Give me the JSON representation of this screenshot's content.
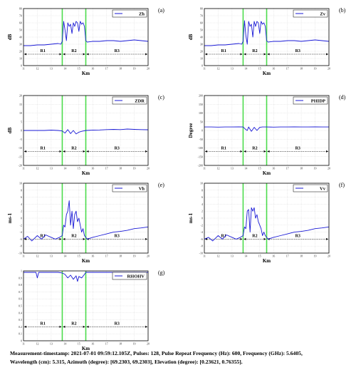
{
  "caption": {
    "line1": "Measurement-timestamp: 2021-07-01 09:59:12.105Z, Pulses: 128, Pulse Repeat Frequency (Hz): 600, Frequency (GHz): 5.6405,",
    "line2": "Wavelength (cm): 5.315, Azimuth (degree): [69.2303, 69.2303], Elevation (degree): [0.23621, 0.76355]."
  },
  "colors": {
    "line": "#1a1ad6",
    "boundary": "#4cdc4c",
    "axis": "#000000",
    "grid": "#cfcfcf"
  },
  "chart_data": [
    {
      "panel": "(a)",
      "type": "line",
      "legend": "Zh",
      "ylabel": "dB",
      "xlabel": "Km",
      "xlim": [
        11,
        20
      ],
      "ylim": [
        0,
        80
      ],
      "yticks": [
        "0",
        "10",
        "20",
        "30",
        "40",
        "50",
        "60",
        "70",
        "80"
      ],
      "xticks": [
        "11",
        "12",
        "13",
        "14",
        "15",
        "16",
        "17",
        "18",
        "19",
        "20"
      ],
      "boundaries": [
        13.8,
        15.5
      ],
      "regions": [
        "R1",
        "R2",
        "R3"
      ],
      "x": [
        11,
        11.5,
        12,
        12.5,
        13,
        13.5,
        13.7,
        13.8,
        13.9,
        14.0,
        14.1,
        14.2,
        14.3,
        14.4,
        14.5,
        14.6,
        14.7,
        14.8,
        14.9,
        15.0,
        15.1,
        15.2,
        15.3,
        15.4,
        15.5,
        15.6,
        16,
        16.5,
        17,
        17.5,
        18,
        18.5,
        19,
        19.5,
        20
      ],
      "y": [
        28,
        28,
        29,
        29,
        30,
        31,
        30,
        34,
        62,
        50,
        35,
        60,
        55,
        58,
        45,
        60,
        55,
        62,
        60,
        48,
        62,
        58,
        60,
        55,
        35,
        33,
        34,
        34,
        35,
        35,
        34,
        35,
        36,
        35,
        34
      ]
    },
    {
      "panel": "(b)",
      "type": "line",
      "legend": "Zv",
      "ylabel": "dB",
      "xlabel": "Km",
      "xlim": [
        11,
        20
      ],
      "ylim": [
        0,
        80
      ],
      "yticks": [
        "0",
        "10",
        "20",
        "30",
        "40",
        "50",
        "60",
        "70",
        "80"
      ],
      "xticks": [
        "11",
        "12",
        "13",
        "14",
        "15",
        "16",
        "17",
        "18",
        "19",
        "20"
      ],
      "boundaries": [
        13.8,
        15.5
      ],
      "regions": [
        "R1",
        "R2",
        "R3"
      ],
      "x": [
        11,
        11.5,
        12,
        12.5,
        13,
        13.5,
        13.7,
        13.8,
        13.9,
        14.0,
        14.1,
        14.2,
        14.3,
        14.4,
        14.5,
        14.6,
        14.7,
        14.8,
        14.9,
        15.0,
        15.1,
        15.2,
        15.3,
        15.4,
        15.5,
        15.6,
        16,
        16.5,
        17,
        17.5,
        18,
        18.5,
        19,
        19.5,
        20
      ],
      "y": [
        28,
        28,
        29,
        29,
        30,
        31,
        30,
        34,
        63,
        42,
        30,
        62,
        55,
        58,
        40,
        62,
        55,
        62,
        60,
        45,
        62,
        58,
        60,
        55,
        35,
        33,
        34,
        34,
        35,
        35,
        34,
        35,
        36,
        35,
        34
      ]
    },
    {
      "panel": "(c)",
      "type": "line",
      "legend": "ZDR",
      "ylabel": "dB",
      "xlabel": "Km",
      "xlim": [
        11,
        20
      ],
      "ylim": [
        -20,
        20
      ],
      "yticks": [
        "-20",
        "-15",
        "-10",
        "-5",
        "0",
        "5",
        "10",
        "15",
        "20"
      ],
      "xticks": [
        "11",
        "12",
        "13",
        "14",
        "15",
        "16",
        "17",
        "18",
        "19",
        "20"
      ],
      "boundaries": [
        13.8,
        15.5
      ],
      "regions": [
        "R1",
        "R2",
        "R3"
      ],
      "x": [
        11,
        11.5,
        12,
        12.5,
        13,
        13.5,
        13.8,
        14.0,
        14.2,
        14.4,
        14.6,
        14.8,
        15.0,
        15.2,
        15.5,
        16,
        16.5,
        17,
        17.5,
        18,
        18.5,
        19,
        19.5,
        20
      ],
      "y": [
        0,
        0,
        0,
        0,
        0.2,
        0,
        -0.3,
        -1.5,
        0.5,
        -1.8,
        0,
        -2,
        -1,
        -0.5,
        0,
        0.2,
        0.3,
        0.5,
        0.6,
        0.5,
        0.8,
        0.6,
        0.5,
        0.4
      ]
    },
    {
      "panel": "(d)",
      "type": "line",
      "legend": "PHIDP",
      "ylabel": "Degree",
      "xlabel": "Km",
      "xlim": [
        11,
        20
      ],
      "ylim": [
        -200,
        200
      ],
      "yticks": [
        "-200",
        "-150",
        "-100",
        "-50",
        "0",
        "50",
        "100",
        "150",
        "200"
      ],
      "xticks": [
        "11",
        "12",
        "13",
        "14",
        "15",
        "16",
        "17",
        "18",
        "19",
        "20"
      ],
      "boundaries": [
        13.8,
        15.5
      ],
      "regions": [
        "R1",
        "R2",
        "R3"
      ],
      "x": [
        11,
        11.5,
        12,
        12.5,
        13,
        13.5,
        13.8,
        14.0,
        14.1,
        14.2,
        14.4,
        14.6,
        14.8,
        15.0,
        15.2,
        15.5,
        16,
        16.5,
        17,
        17.5,
        18,
        18.5,
        19,
        19.5,
        20
      ],
      "y": [
        20,
        20,
        19,
        20,
        20,
        21,
        20,
        5,
        0,
        20,
        -5,
        18,
        0,
        18,
        20,
        20,
        19,
        20,
        20,
        21,
        20,
        20,
        21,
        20,
        20
      ]
    },
    {
      "panel": "(e)",
      "type": "line",
      "legend": "Vh",
      "ylabel": "ms-1",
      "xlabel": "Km",
      "xlim": [
        11,
        20
      ],
      "ylim": [
        -10,
        10
      ],
      "yticks": [
        "-10",
        "-8",
        "-6",
        "-4",
        "-2",
        "0",
        "2",
        "4",
        "6",
        "8",
        "10"
      ],
      "xticks": [
        "11",
        "12",
        "13",
        "14",
        "15",
        "16",
        "17",
        "18",
        "19",
        "20"
      ],
      "boundaries": [
        13.8,
        15.5
      ],
      "regions": [
        "R1",
        "R2",
        "R3"
      ],
      "x": [
        11,
        11.3,
        11.6,
        12,
        12.3,
        12.6,
        13,
        13.3,
        13.6,
        13.8,
        13.9,
        14.0,
        14.1,
        14.2,
        14.3,
        14.4,
        14.5,
        14.6,
        14.7,
        14.8,
        14.9,
        15.0,
        15.1,
        15.2,
        15.3,
        15.4,
        15.5,
        15.6,
        16,
        16.5,
        17,
        17.5,
        18,
        18.5,
        19,
        19.5,
        20
      ],
      "y": [
        -6,
        -5.2,
        -6.5,
        -5,
        -6,
        -4.8,
        -5.5,
        -6,
        -5.5,
        -5,
        -2,
        -2.5,
        1,
        2,
        5,
        -2,
        2,
        -3,
        1,
        2,
        -1,
        0,
        -2,
        -4,
        -3,
        -5,
        -5.5,
        -6,
        -5.5,
        -5,
        -4.5,
        -4,
        -3.8,
        -3.5,
        -3,
        -2.8,
        -2.5
      ]
    },
    {
      "panel": "(f)",
      "type": "line",
      "legend": "Vv",
      "ylabel": "ms-1",
      "xlabel": "Km",
      "xlim": [
        11,
        20
      ],
      "ylim": [
        -10,
        10
      ],
      "yticks": [
        "-10",
        "-8",
        "-6",
        "-4",
        "-2",
        "0",
        "2",
        "4",
        "6",
        "8",
        "10"
      ],
      "xticks": [
        "11",
        "12",
        "13",
        "14",
        "15",
        "16",
        "17",
        "18",
        "19",
        "20"
      ],
      "boundaries": [
        13.8,
        15.5
      ],
      "regions": [
        "R1",
        "R2",
        "R3"
      ],
      "x": [
        11,
        11.3,
        11.6,
        12,
        12.3,
        12.6,
        13,
        13.3,
        13.6,
        13.8,
        13.9,
        14.0,
        14.1,
        14.2,
        14.3,
        14.4,
        14.5,
        14.6,
        14.7,
        14.8,
        14.9,
        15.0,
        15.1,
        15.2,
        15.3,
        15.4,
        15.5,
        15.6,
        16,
        16.5,
        17,
        17.5,
        18,
        18.5,
        19,
        19.5,
        20
      ],
      "y": [
        -6,
        -5.5,
        -6.5,
        -5,
        -6,
        -4.8,
        -5.5,
        -6,
        -5.5,
        -5,
        -2.5,
        -3,
        2,
        2.5,
        -4,
        3,
        2,
        3,
        0,
        1,
        -1,
        -2,
        -3,
        -5,
        -4,
        -5,
        -5.5,
        -6,
        -5.5,
        -5,
        -4.5,
        -4,
        -3.8,
        -3.5,
        -3,
        -2.8,
        -2.5
      ]
    },
    {
      "panel": "(g)",
      "type": "line",
      "legend": "RHOHV",
      "ylabel": "",
      "xlabel": "Km",
      "xlim": [
        11,
        20
      ],
      "ylim": [
        0,
        1
      ],
      "yticks": [
        "0",
        "0.1",
        "0.2",
        "0.3",
        "0.4",
        "0.5",
        "0.6",
        "0.7",
        "0.8",
        "0.9",
        "1"
      ],
      "xticks": [
        "11",
        "12",
        "13",
        "14",
        "15",
        "16",
        "17",
        "18",
        "19",
        "20"
      ],
      "boundaries": [
        13.8,
        15.5
      ],
      "regions": [
        "R1",
        "R2",
        "R3"
      ],
      "x": [
        11,
        11.5,
        11.9,
        12.0,
        12.1,
        12.5,
        13,
        13.5,
        13.8,
        14.0,
        14.2,
        14.4,
        14.6,
        14.8,
        14.9,
        15.0,
        15.2,
        15.4,
        15.5,
        16,
        16.5,
        17,
        17.5,
        18,
        18.5,
        19,
        19.5,
        20
      ],
      "y": [
        0.98,
        0.98,
        0.98,
        0.9,
        0.98,
        0.98,
        0.98,
        0.98,
        0.97,
        0.95,
        0.9,
        0.94,
        0.88,
        0.93,
        0.85,
        0.92,
        0.9,
        0.95,
        0.98,
        0.98,
        0.98,
        0.98,
        0.98,
        0.98,
        0.98,
        0.98,
        0.98,
        0.98
      ]
    }
  ]
}
